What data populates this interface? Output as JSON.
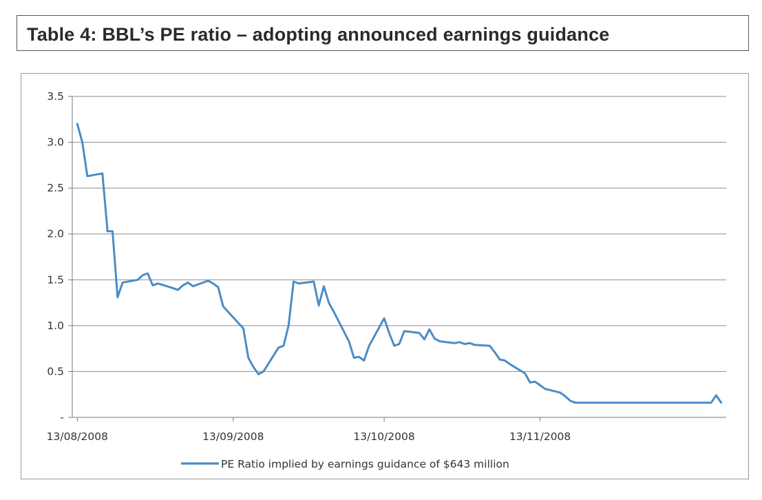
{
  "title": "Table 4: BBL’s PE ratio – adopting announced earnings guidance",
  "chart_data": {
    "type": "line",
    "series": [
      {
        "name": "PE Ratio  implied by earnings guidance of $643 million",
        "color": "#4a8cc6",
        "x": [
          "2008-08-13",
          "2008-08-14",
          "2008-08-15",
          "2008-08-18",
          "2008-08-19",
          "2008-08-20",
          "2008-08-21",
          "2008-08-22",
          "2008-08-25",
          "2008-08-26",
          "2008-08-27",
          "2008-08-28",
          "2008-08-29",
          "2008-09-01",
          "2008-09-02",
          "2008-09-03",
          "2008-09-04",
          "2008-09-05",
          "2008-09-08",
          "2008-09-09",
          "2008-09-10",
          "2008-09-11",
          "2008-09-12",
          "2008-09-15",
          "2008-09-16",
          "2008-09-17",
          "2008-09-18",
          "2008-09-19",
          "2008-09-22",
          "2008-09-23",
          "2008-09-24",
          "2008-09-25",
          "2008-09-26",
          "2008-09-29",
          "2008-09-30",
          "2008-10-01",
          "2008-10-02",
          "2008-10-03",
          "2008-10-06",
          "2008-10-07",
          "2008-10-08",
          "2008-10-09",
          "2008-10-10",
          "2008-10-13",
          "2008-10-14",
          "2008-10-15",
          "2008-10-16",
          "2008-10-17",
          "2008-10-20",
          "2008-10-21",
          "2008-10-22",
          "2008-10-23",
          "2008-10-24",
          "2008-10-27",
          "2008-10-28",
          "2008-10-29",
          "2008-10-30",
          "2008-10-31",
          "2008-11-03",
          "2008-11-04",
          "2008-11-05",
          "2008-11-06",
          "2008-11-07",
          "2008-11-10",
          "2008-11-11",
          "2008-11-12",
          "2008-11-13",
          "2008-11-14",
          "2008-11-17",
          "2008-11-18",
          "2008-11-19",
          "2008-11-20",
          "2008-11-21",
          "2008-11-24",
          "2008-11-25",
          "2008-11-26",
          "2008-11-27",
          "2008-11-28",
          "2008-12-01",
          "2008-12-02",
          "2008-12-03",
          "2008-12-04",
          "2008-12-05",
          "2008-12-08",
          "2008-12-09",
          "2008-12-10",
          "2008-12-11",
          "2008-12-12",
          "2008-12-15",
          "2008-12-16",
          "2008-12-17",
          "2008-12-18",
          "2008-12-19"
        ],
        "y": [
          3.2,
          3.0,
          2.63,
          2.66,
          2.03,
          2.03,
          1.31,
          1.47,
          1.5,
          1.55,
          1.57,
          1.44,
          1.46,
          1.41,
          1.39,
          1.44,
          1.47,
          1.43,
          1.49,
          1.46,
          1.42,
          1.21,
          1.15,
          0.97,
          0.65,
          0.55,
          0.47,
          0.5,
          0.76,
          0.78,
          1.0,
          1.48,
          1.46,
          1.48,
          1.22,
          1.43,
          1.25,
          1.15,
          0.83,
          0.65,
          0.66,
          0.62,
          0.78,
          1.08,
          0.92,
          0.78,
          0.8,
          0.94,
          0.92,
          0.85,
          0.96,
          0.86,
          0.83,
          0.81,
          0.82,
          0.8,
          0.81,
          0.79,
          0.78,
          0.71,
          0.63,
          0.62,
          0.58,
          0.48,
          0.38,
          0.39,
          0.35,
          0.31,
          0.27,
          0.23,
          0.18,
          0.16,
          0.16,
          0.16,
          0.16,
          0.16,
          0.16,
          0.16,
          0.16,
          0.16,
          0.16,
          0.16,
          0.16,
          0.16,
          0.16,
          0.16,
          0.16,
          0.16,
          0.16,
          0.16,
          0.16,
          0.24,
          0.16
        ]
      }
    ],
    "y_ticks": [
      "-",
      "0.5",
      "1.0",
      "1.5",
      "2.0",
      "2.5",
      "3.0",
      "3.5"
    ],
    "x_ticks": [
      "13/08/2008",
      "13/09/2008",
      "13/10/2008",
      "13/11/2008"
    ],
    "ylim": [
      0,
      3.5
    ],
    "xlim": [
      "2008-08-12",
      "2008-12-20"
    ],
    "grid": "horizontal",
    "legend_position": "bottom"
  }
}
